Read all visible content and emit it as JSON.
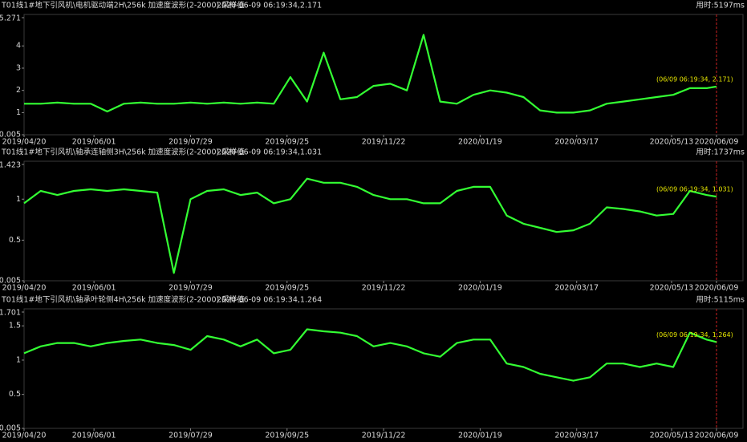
{
  "chart_data": [
    {
      "type": "line",
      "title": "T01线1#地下引风机\\电机驱动端2H\\256k 加速度波形(2-2000).采样值",
      "subtitle": "2020-06-09 06:19:34,2.171",
      "elapsed_label": "用时:5197ms",
      "annotation": "(06/09 06:19:34, 2.171)",
      "annotation_color": "#e6e600",
      "x": [
        "2019/04/20",
        "2019/04/30",
        "2019/05/10",
        "2019/05/20",
        "2019/05/30",
        "2019/06/09",
        "2019/06/19",
        "2019/06/29",
        "2019/07/09",
        "2019/07/19",
        "2019/07/29",
        "2019/08/08",
        "2019/08/18",
        "2019/08/28",
        "2019/09/07",
        "2019/09/17",
        "2019/09/27",
        "2019/10/07",
        "2019/10/17",
        "2019/10/27",
        "2019/11/06",
        "2019/11/16",
        "2019/11/26",
        "2019/12/06",
        "2019/12/16",
        "2019/12/26",
        "2020/01/05",
        "2020/01/15",
        "2020/01/25",
        "2020/02/04",
        "2020/02/14",
        "2020/02/24",
        "2020/03/05",
        "2020/03/15",
        "2020/03/25",
        "2020/04/04",
        "2020/04/14",
        "2020/04/24",
        "2020/05/04",
        "2020/05/14",
        "2020/05/24",
        "2020/06/03",
        "2020/06/09"
      ],
      "values": [
        1.4,
        1.4,
        1.45,
        1.4,
        1.4,
        1.05,
        1.4,
        1.45,
        1.4,
        1.4,
        1.45,
        1.4,
        1.45,
        1.4,
        1.45,
        1.4,
        2.6,
        1.5,
        3.7,
        1.6,
        1.7,
        2.2,
        2.3,
        2.0,
        4.5,
        1.5,
        1.4,
        1.8,
        2.0,
        1.9,
        1.7,
        1.1,
        1.0,
        1.0,
        1.1,
        1.4,
        1.5,
        1.6,
        1.7,
        1.8,
        2.1,
        2.1,
        2.171
      ],
      "color": "#33ff33",
      "xlim": [
        "2019/04/20",
        "2020/06/09"
      ],
      "xticks": [
        "2019/04/20",
        "2019/06/01",
        "2019/07/29",
        "2019/09/25",
        "2019/11/22",
        "2020/01/19",
        "2020/03/17",
        "2020/05/13",
        "2020/06/09"
      ],
      "ylim": [
        0.005,
        5.271
      ],
      "yticks": [
        0.005,
        1,
        2,
        3,
        4,
        5.271
      ]
    },
    {
      "type": "line",
      "title": "T01线1#地下引风机\\轴承连轴侧3H\\256k 加速度波形(2-2000).采样值",
      "subtitle": "2020-06-09 06:19:34,1.031",
      "elapsed_label": "用时:1737ms",
      "annotation": "(06/09 06:19:34, 1.031)",
      "annotation_color": "#e6e600",
      "x": [
        "2019/04/20",
        "2019/04/30",
        "2019/05/10",
        "2019/05/20",
        "2019/05/30",
        "2019/06/09",
        "2019/06/19",
        "2019/06/29",
        "2019/07/09",
        "2019/07/19",
        "2019/07/29",
        "2019/08/08",
        "2019/08/18",
        "2019/08/28",
        "2019/09/07",
        "2019/09/17",
        "2019/09/27",
        "2019/10/07",
        "2019/10/17",
        "2019/10/27",
        "2019/11/06",
        "2019/11/16",
        "2019/11/26",
        "2019/12/06",
        "2019/12/16",
        "2019/12/26",
        "2020/01/05",
        "2020/01/15",
        "2020/01/25",
        "2020/02/04",
        "2020/02/14",
        "2020/02/24",
        "2020/03/05",
        "2020/03/15",
        "2020/03/25",
        "2020/04/04",
        "2020/04/14",
        "2020/04/24",
        "2020/05/04",
        "2020/05/14",
        "2020/05/24",
        "2020/06/03",
        "2020/06/09"
      ],
      "values": [
        0.95,
        1.1,
        1.05,
        1.1,
        1.12,
        1.1,
        1.12,
        1.1,
        1.08,
        0.1,
        1.0,
        1.1,
        1.12,
        1.05,
        1.08,
        0.95,
        1.0,
        1.25,
        1.2,
        1.2,
        1.15,
        1.05,
        1.0,
        1.0,
        0.95,
        0.95,
        1.1,
        1.15,
        1.15,
        0.8,
        0.7,
        0.65,
        0.6,
        0.62,
        0.7,
        0.9,
        0.88,
        0.85,
        0.8,
        0.82,
        1.1,
        1.05,
        1.031
      ],
      "color": "#33ff33",
      "xlim": [
        "2019/04/20",
        "2020/06/09"
      ],
      "xticks": [
        "2019/04/20",
        "2019/06/01",
        "2019/07/29",
        "2019/09/25",
        "2019/11/22",
        "2020/01/19",
        "2020/03/17",
        "2020/05/13",
        "2020/06/09"
      ],
      "ylim": [
        0.005,
        1.423
      ],
      "yticks": [
        0.005,
        0.5,
        1,
        1.423
      ]
    },
    {
      "type": "line",
      "title": "T01线1#地下引风机\\轴承叶轮侧4H\\256k 加速度波形(2-2000).采样值",
      "subtitle": "2020-06-09 06:19:34,1.264",
      "elapsed_label": "用时:5115ms",
      "annotation": "(06/09 06:19:34, 1.264)",
      "annotation_color": "#e6e600",
      "x": [
        "2019/04/20",
        "2019/04/30",
        "2019/05/10",
        "2019/05/20",
        "2019/05/30",
        "2019/06/09",
        "2019/06/19",
        "2019/06/29",
        "2019/07/09",
        "2019/07/19",
        "2019/07/29",
        "2019/08/08",
        "2019/08/18",
        "2019/08/28",
        "2019/09/07",
        "2019/09/17",
        "2019/09/27",
        "2019/10/07",
        "2019/10/17",
        "2019/10/27",
        "2019/11/06",
        "2019/11/16",
        "2019/11/26",
        "2019/12/06",
        "2019/12/16",
        "2019/12/26",
        "2020/01/05",
        "2020/01/15",
        "2020/01/25",
        "2020/02/04",
        "2020/02/14",
        "2020/02/24",
        "2020/03/05",
        "2020/03/15",
        "2020/03/25",
        "2020/04/04",
        "2020/04/14",
        "2020/04/24",
        "2020/05/04",
        "2020/05/14",
        "2020/05/24",
        "2020/06/03",
        "2020/06/09"
      ],
      "values": [
        1.1,
        1.2,
        1.25,
        1.25,
        1.2,
        1.25,
        1.28,
        1.3,
        1.25,
        1.22,
        1.15,
        1.35,
        1.3,
        1.2,
        1.3,
        1.1,
        1.15,
        1.45,
        1.42,
        1.4,
        1.35,
        1.2,
        1.25,
        1.2,
        1.1,
        1.05,
        1.25,
        1.3,
        1.3,
        0.95,
        0.9,
        0.8,
        0.75,
        0.7,
        0.75,
        0.95,
        0.95,
        0.9,
        0.95,
        0.9,
        1.4,
        1.3,
        1.264
      ],
      "color": "#33ff33",
      "xlim": [
        "2019/04/20",
        "2020/06/09"
      ],
      "xticks": [
        "2019/04/20",
        "2019/06/01",
        "2019/07/29",
        "2019/09/25",
        "2019/11/22",
        "2020/01/19",
        "2020/03/17",
        "2020/05/13",
        "2020/06/09"
      ],
      "ylim": [
        0.005,
        1.701
      ],
      "yticks": [
        0.005,
        0.5,
        1,
        1.5,
        1.701
      ]
    }
  ]
}
